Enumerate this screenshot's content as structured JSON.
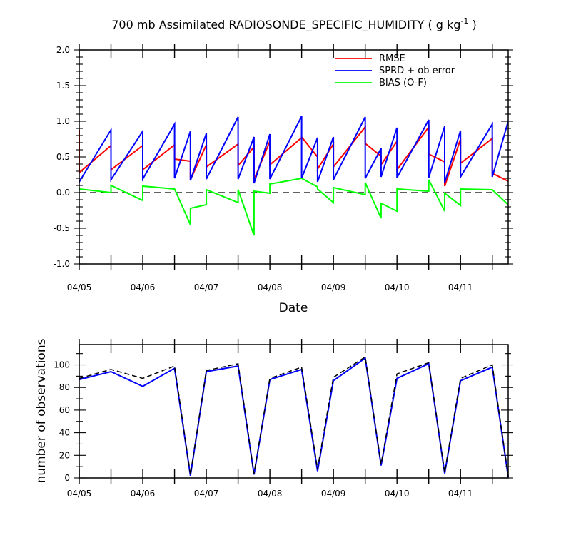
{
  "chart_data": [
    {
      "type": "line",
      "title": "700 mb Assimilated RADIOSONDE_SPECIFIC_HUMIDITY ( g kg",
      "title_superscript": "-1",
      "title_suffix": " )",
      "xlabel": "Date",
      "ylabel": "",
      "xlim": [
        0,
        6.75
      ],
      "ylim": [
        -1.0,
        2.0
      ],
      "x_ticks": [
        0,
        1,
        2,
        3,
        4,
        5,
        6
      ],
      "x_tick_labels": [
        "04/05",
        "04/06",
        "04/07",
        "04/08",
        "04/09",
        "04/10",
        "04/11"
      ],
      "y_ticks": [
        -1.0,
        -0.5,
        0.0,
        0.5,
        1.0,
        1.5,
        2.0
      ],
      "y_tick_labels": [
        "-1.0",
        "-0.5",
        "0.0",
        "0.5",
        "1.0",
        "1.5",
        "2.0"
      ],
      "zero_line": "dashed",
      "grid": false,
      "legend_position": "top-right",
      "series": [
        {
          "name": "RMSE",
          "color": "#ff0000",
          "points": [
            [
              0,
              0.88
            ],
            [
              0,
              0.28
            ],
            [
              0.5,
              0.66
            ],
            [
              0.5,
              0.32
            ],
            [
              1,
              0.66
            ],
            [
              1,
              0.32
            ],
            [
              1.5,
              0.67
            ],
            [
              1.5,
              0.47
            ],
            [
              1.75,
              0.44
            ],
            [
              1.75,
              0.18
            ],
            [
              2,
              0.67
            ],
            [
              2,
              0.36
            ],
            [
              2.5,
              0.68
            ],
            [
              2.5,
              0.38
            ],
            [
              2.75,
              0.64
            ],
            [
              2.75,
              0.18
            ],
            [
              3,
              0.72
            ],
            [
              3,
              0.39
            ],
            [
              3.5,
              0.77
            ],
            [
              3.5,
              0.78
            ],
            [
              3.75,
              0.5
            ],
            [
              3.75,
              0.33
            ],
            [
              4,
              0.68
            ],
            [
              4,
              0.36
            ],
            [
              4.5,
              0.92
            ],
            [
              4.5,
              0.69
            ],
            [
              4.75,
              0.51
            ],
            [
              4.75,
              0.39
            ],
            [
              5,
              0.72
            ],
            [
              5,
              0.32
            ],
            [
              5.5,
              0.92
            ],
            [
              5.5,
              0.54
            ],
            [
              5.75,
              0.43
            ],
            [
              5.75,
              0.09
            ],
            [
              6,
              0.75
            ],
            [
              6,
              0.41
            ],
            [
              6.5,
              0.76
            ],
            [
              6.5,
              0.27
            ],
            [
              6.75,
              0.16
            ]
          ]
        },
        {
          "name": "SPRD + ob error",
          "color": "#0000ff",
          "points": [
            [
              0,
              0.17
            ],
            [
              0,
              0.15
            ],
            [
              0.5,
              0.88
            ],
            [
              0.5,
              0.18
            ],
            [
              1,
              0.86
            ],
            [
              1,
              0.19
            ],
            [
              1.5,
              0.96
            ],
            [
              1.5,
              0.2
            ],
            [
              1.75,
              0.86
            ],
            [
              1.75,
              0.17
            ],
            [
              2,
              0.83
            ],
            [
              2,
              0.19
            ],
            [
              2.5,
              1.06
            ],
            [
              2.5,
              0.19
            ],
            [
              2.75,
              0.78
            ],
            [
              2.75,
              0.13
            ],
            [
              3,
              0.82
            ],
            [
              3,
              0.19
            ],
            [
              3.5,
              1.07
            ],
            [
              3.5,
              0.2
            ],
            [
              3.75,
              0.77
            ],
            [
              3.75,
              0.15
            ],
            [
              4,
              0.78
            ],
            [
              4,
              0.18
            ],
            [
              4.5,
              1.06
            ],
            [
              4.5,
              0.2
            ],
            [
              4.75,
              0.62
            ],
            [
              4.75,
              0.22
            ],
            [
              5,
              0.91
            ],
            [
              5,
              0.21
            ],
            [
              5.5,
              1.02
            ],
            [
              5.5,
              0.21
            ],
            [
              5.75,
              0.93
            ],
            [
              5.75,
              0.14
            ],
            [
              6,
              0.87
            ],
            [
              6,
              0.22
            ],
            [
              6.5,
              0.96
            ],
            [
              6.5,
              0.22
            ],
            [
              6.75,
              1.0
            ]
          ]
        },
        {
          "name": "BIAS (O-F)",
          "color": "#00ff00",
          "points": [
            [
              0,
              0.05
            ],
            [
              0.5,
              0.0
            ],
            [
              0.5,
              0.1
            ],
            [
              1,
              -0.11
            ],
            [
              1,
              0.09
            ],
            [
              1.5,
              0.05
            ],
            [
              1.75,
              -0.45
            ],
            [
              1.75,
              -0.22
            ],
            [
              2,
              -0.17
            ],
            [
              2,
              0.04
            ],
            [
              2.5,
              -0.14
            ],
            [
              2.5,
              0.04
            ],
            [
              2.75,
              -0.6
            ],
            [
              2.75,
              0.02
            ],
            [
              3,
              -0.01
            ],
            [
              3,
              0.12
            ],
            [
              3.5,
              0.2
            ],
            [
              3.75,
              0.08
            ],
            [
              3.75,
              0.05
            ],
            [
              4,
              -0.14
            ],
            [
              4,
              0.07
            ],
            [
              4.5,
              -0.03
            ],
            [
              4.5,
              0.14
            ],
            [
              4.75,
              -0.36
            ],
            [
              4.75,
              -0.15
            ],
            [
              5,
              -0.26
            ],
            [
              5,
              0.05
            ],
            [
              5.5,
              0.02
            ],
            [
              5.5,
              0.18
            ],
            [
              5.75,
              -0.26
            ],
            [
              5.75,
              -0.01
            ],
            [
              6,
              -0.18
            ],
            [
              6,
              0.05
            ],
            [
              6.5,
              0.04
            ],
            [
              6.75,
              -0.17
            ]
          ]
        }
      ]
    },
    {
      "type": "line",
      "ylabel": "number of observations",
      "xlim": [
        0,
        6.75
      ],
      "ylim": [
        0,
        118
      ],
      "x_ticks": [
        0,
        1,
        2,
        3,
        4,
        5,
        6
      ],
      "x_tick_labels": [
        "04/05",
        "04/06",
        "04/07",
        "04/08",
        "04/09",
        "04/10",
        "04/11"
      ],
      "y_ticks": [
        0,
        20,
        40,
        60,
        80,
        100
      ],
      "y_tick_labels": [
        "0",
        "20",
        "40",
        "60",
        "80",
        "100"
      ],
      "grid": false,
      "series": [
        {
          "style": "solid",
          "color": "#0000ff",
          "points": [
            [
              0,
              87
            ],
            [
              0.5,
              94
            ],
            [
              1,
              81
            ],
            [
              1.5,
              97
            ],
            [
              1.75,
              2
            ],
            [
              2,
              94
            ],
            [
              2.5,
              99
            ],
            [
              2.75,
              3
            ],
            [
              3,
              87
            ],
            [
              3.5,
              96
            ],
            [
              3.75,
              6
            ],
            [
              4,
              86
            ],
            [
              4.5,
              106
            ],
            [
              4.75,
              11
            ],
            [
              5,
              88
            ],
            [
              5.5,
              101
            ],
            [
              5.75,
              4
            ],
            [
              6,
              86
            ],
            [
              6.5,
              98
            ],
            [
              6.75,
              1
            ]
          ]
        },
        {
          "style": "dashed",
          "color": "#000000",
          "points": [
            [
              0,
              88
            ],
            [
              0.5,
              96
            ],
            [
              1,
              88
            ],
            [
              1.5,
              99
            ],
            [
              1.75,
              3
            ],
            [
              2,
              95
            ],
            [
              2.5,
              101
            ],
            [
              2.75,
              4
            ],
            [
              3,
              88
            ],
            [
              3.5,
              98
            ],
            [
              3.75,
              8
            ],
            [
              4,
              89
            ],
            [
              4.5,
              107
            ],
            [
              4.75,
              12
            ],
            [
              5,
              92
            ],
            [
              5.5,
              102
            ],
            [
              5.75,
              5
            ],
            [
              6,
              88
            ],
            [
              6.5,
              100
            ],
            [
              6.75,
              2
            ]
          ]
        }
      ]
    }
  ]
}
